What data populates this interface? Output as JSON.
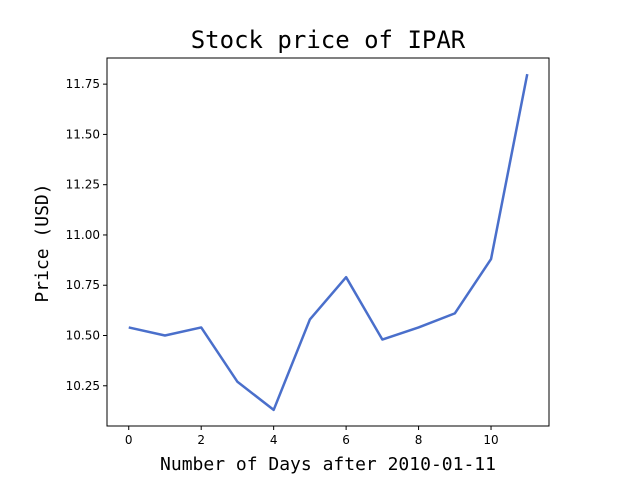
{
  "chart_data": {
    "type": "line",
    "title": "Stock price of IPAR",
    "xlabel": "Number of Days after 2010-01-11",
    "ylabel": "Price (USD)",
    "xlim": [
      -0.6,
      11.6
    ],
    "ylim": [
      10.05,
      11.88
    ],
    "x_ticks": [
      0,
      2,
      4,
      6,
      8,
      10
    ],
    "x_tick_labels": [
      "0",
      "2",
      "4",
      "6",
      "8",
      "10"
    ],
    "y_ticks": [
      10.25,
      10.5,
      10.75,
      11.0,
      11.25,
      11.5,
      11.75
    ],
    "y_tick_labels": [
      "10.25",
      "10.50",
      "10.75",
      "11.00",
      "11.25",
      "11.50",
      "11.75"
    ],
    "grid": false,
    "line_color": "#4a6fcb",
    "series": [
      {
        "x": [
          0,
          1,
          2,
          3,
          4,
          5,
          6,
          7,
          8,
          9,
          10,
          11
        ],
        "values": [
          10.54,
          10.5,
          10.54,
          10.27,
          10.13,
          10.58,
          10.79,
          10.48,
          10.54,
          10.61,
          10.88,
          11.8
        ]
      }
    ]
  }
}
